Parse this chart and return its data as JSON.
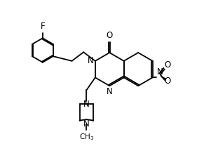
{
  "background_color": "#ffffff",
  "line_color": "#000000",
  "line_width": 1.3,
  "font_size": 8.5,
  "figsize": [
    3.11,
    2.25
  ],
  "dpi": 100,
  "xlim": [
    -1.5,
    8.5
  ],
  "ylim": [
    -3.5,
    4.5
  ]
}
